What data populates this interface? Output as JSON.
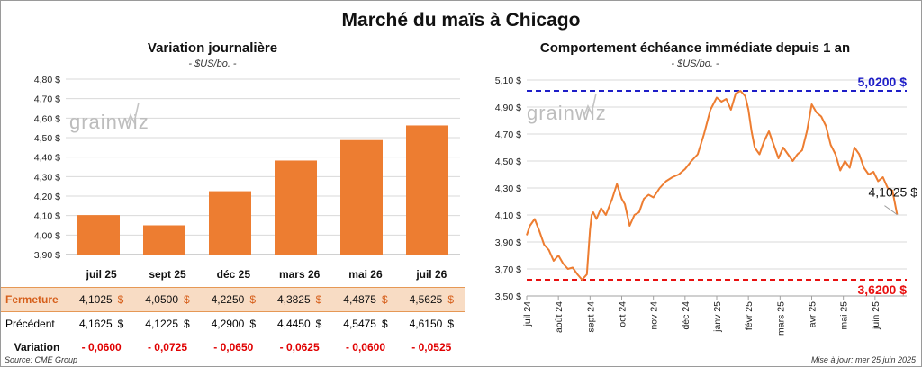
{
  "header": {
    "title": "Marché du maïs à Chicago"
  },
  "left_panel": {
    "title": "Variation journalière",
    "unit": "- $US/bo. -",
    "watermark": "grainwiz"
  },
  "right_panel": {
    "title": "Comportement échéance immédiate depuis 1 an",
    "unit": "- $US/bo. -",
    "watermark": "grainwiz",
    "high_label": "5,0200 $",
    "low_label": "3,6200 $",
    "last_label": "4,1025 $"
  },
  "table": {
    "row_labels": {
      "close": "Fermeture",
      "previous": "Précédent",
      "variation": "Variation"
    },
    "currency": "$",
    "columns": [
      "juil 25",
      "sept 25",
      "déc 25",
      "mars 26",
      "mai 26",
      "juil 26"
    ],
    "close": [
      "4,1025",
      "4,0500",
      "4,2250",
      "4,3825",
      "4,4875",
      "4,5625"
    ],
    "previous": [
      "4,1625",
      "4,1225",
      "4,2900",
      "4,4450",
      "4,5475",
      "4,6150"
    ],
    "variation": [
      "- 0,0600",
      "- 0,0725",
      "- 0,0650",
      "- 0,0625",
      "- 0,0600",
      "- 0,0525"
    ]
  },
  "footer": {
    "source": "Source: CME Group",
    "updated": "Mise à jour: mer 25 juin 2025"
  },
  "colors": {
    "bar": "#ed7d31",
    "line": "#ed7d31",
    "high": "#1e1ec8",
    "low": "#e81010",
    "grid": "#d9d9d9"
  },
  "chart_data": [
    {
      "type": "bar",
      "title": "Variation journalière",
      "categories": [
        "juil 25",
        "sept 25",
        "déc 25",
        "mars 26",
        "mai 26",
        "juil 26"
      ],
      "values": [
        4.1025,
        4.05,
        4.225,
        4.3825,
        4.4875,
        4.5625
      ],
      "ylim": [
        3.9,
        4.8
      ],
      "yticks": [
        "3,90 $",
        "4,00 $",
        "4,10 $",
        "4,20 $",
        "4,30 $",
        "4,40 $",
        "4,50 $",
        "4,60 $",
        "4,70 $",
        "4,80 $"
      ],
      "grid": true,
      "legend": "none"
    },
    {
      "type": "line",
      "title": "Comportement échéance immédiate depuis 1 an",
      "ylim": [
        3.5,
        5.1
      ],
      "yticks": [
        "3,50 $",
        "3,70 $",
        "3,90 $",
        "4,10 $",
        "4,30 $",
        "4,50 $",
        "4,70 $",
        "4,90 $",
        "5,10 $"
      ],
      "xticks": [
        "juil 24",
        "août 24",
        "sept 24",
        "oct 24",
        "nov 24",
        "déc 24",
        "janv 25",
        "févr 25",
        "mars 25",
        "avr 25",
        "mai 25",
        "juin 25"
      ],
      "reference_lines": [
        {
          "label": "5,0200 $",
          "value": 5.02
        },
        {
          "label": "3,6200 $",
          "value": 3.62
        }
      ],
      "last_value": 4.1025,
      "x": [
        0,
        0.1,
        0.25,
        0.4,
        0.55,
        0.7,
        0.85,
        1.0,
        1.15,
        1.3,
        1.45,
        1.6,
        1.75,
        1.9,
        2.0,
        2.05,
        2.1,
        2.2,
        2.35,
        2.5,
        2.7,
        2.85,
        3.0,
        3.1,
        3.25,
        3.4,
        3.55,
        3.7,
        3.85,
        4.0,
        4.2,
        4.4,
        4.6,
        4.8,
        5.0,
        5.2,
        5.4,
        5.6,
        5.8,
        6.0,
        6.15,
        6.3,
        6.45,
        6.6,
        6.75,
        6.9,
        7.0,
        7.1,
        7.2,
        7.35,
        7.5,
        7.65,
        7.8,
        7.95,
        8.1,
        8.25,
        8.4,
        8.55,
        8.7,
        8.85,
        9.0,
        9.15,
        9.3,
        9.45,
        9.6,
        9.75,
        9.9,
        10.05,
        10.2,
        10.35,
        10.5,
        10.65,
        10.8,
        10.95,
        11.1,
        11.25,
        11.4,
        11.55,
        11.7
      ],
      "y": [
        3.95,
        4.02,
        4.07,
        3.98,
        3.88,
        3.84,
        3.76,
        3.8,
        3.74,
        3.7,
        3.71,
        3.66,
        3.62,
        3.66,
        3.99,
        4.1,
        4.12,
        4.07,
        4.15,
        4.1,
        4.22,
        4.33,
        4.22,
        4.18,
        4.02,
        4.1,
        4.12,
        4.22,
        4.25,
        4.23,
        4.3,
        4.35,
        4.38,
        4.4,
        4.44,
        4.5,
        4.55,
        4.7,
        4.88,
        4.97,
        4.94,
        4.96,
        4.88,
        5.0,
        5.02,
        4.98,
        4.88,
        4.72,
        4.6,
        4.55,
        4.65,
        4.72,
        4.62,
        4.52,
        4.6,
        4.55,
        4.5,
        4.55,
        4.58,
        4.72,
        4.92,
        4.86,
        4.83,
        4.76,
        4.62,
        4.55,
        4.43,
        4.5,
        4.45,
        4.6,
        4.55,
        4.45,
        4.4,
        4.42,
        4.35,
        4.38,
        4.3,
        4.28,
        4.1025
      ]
    }
  ]
}
